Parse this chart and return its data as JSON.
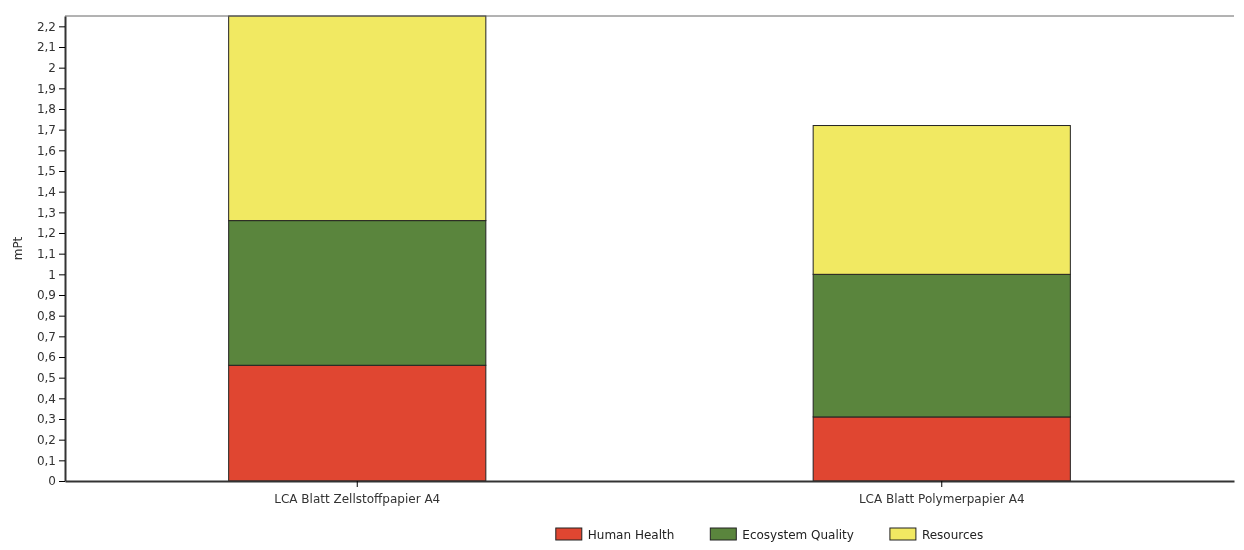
{
  "chart_data": {
    "type": "bar",
    "stacked": true,
    "ylabel": "mPt",
    "categories": [
      "LCA Blatt Zellstoffpapier A4",
      "LCA Blatt Polymerpapier A4"
    ],
    "series": [
      {
        "name": "Human Health",
        "color": "#e04631",
        "values": [
          0.56,
          0.31
        ]
      },
      {
        "name": "Ecosystem Quality",
        "color": "#5a853d",
        "values": [
          0.7,
          0.69
        ]
      },
      {
        "name": "Resources",
        "color": "#f1e962",
        "values": [
          0.99,
          0.72
        ]
      }
    ],
    "ylim": [
      0,
      2.25
    ],
    "yticks": [
      {
        "value": 0,
        "label": "0"
      },
      {
        "value": 0.1,
        "label": "0,1"
      },
      {
        "value": 0.2,
        "label": "0,2"
      },
      {
        "value": 0.3,
        "label": "0,3"
      },
      {
        "value": 0.4,
        "label": "0,4"
      },
      {
        "value": 0.5,
        "label": "0,5"
      },
      {
        "value": 0.6,
        "label": "0,6"
      },
      {
        "value": 0.7,
        "label": "0,7"
      },
      {
        "value": 0.8,
        "label": "0,8"
      },
      {
        "value": 0.9,
        "label": "0,9"
      },
      {
        "value": 1,
        "label": "1"
      },
      {
        "value": 1.1,
        "label": "1,1"
      },
      {
        "value": 1.2,
        "label": "1,2"
      },
      {
        "value": 1.3,
        "label": "1,3"
      },
      {
        "value": 1.4,
        "label": "1,4"
      },
      {
        "value": 1.5,
        "label": "1,5"
      },
      {
        "value": 1.6,
        "label": "1,6"
      },
      {
        "value": 1.7,
        "label": "1,7"
      },
      {
        "value": 1.8,
        "label": "1,8"
      },
      {
        "value": 1.9,
        "label": "1,9"
      },
      {
        "value": 2,
        "label": "2"
      },
      {
        "value": 2.1,
        "label": "2,1"
      },
      {
        "value": 2.2,
        "label": "2,2"
      }
    ],
    "legend": "bottom"
  }
}
